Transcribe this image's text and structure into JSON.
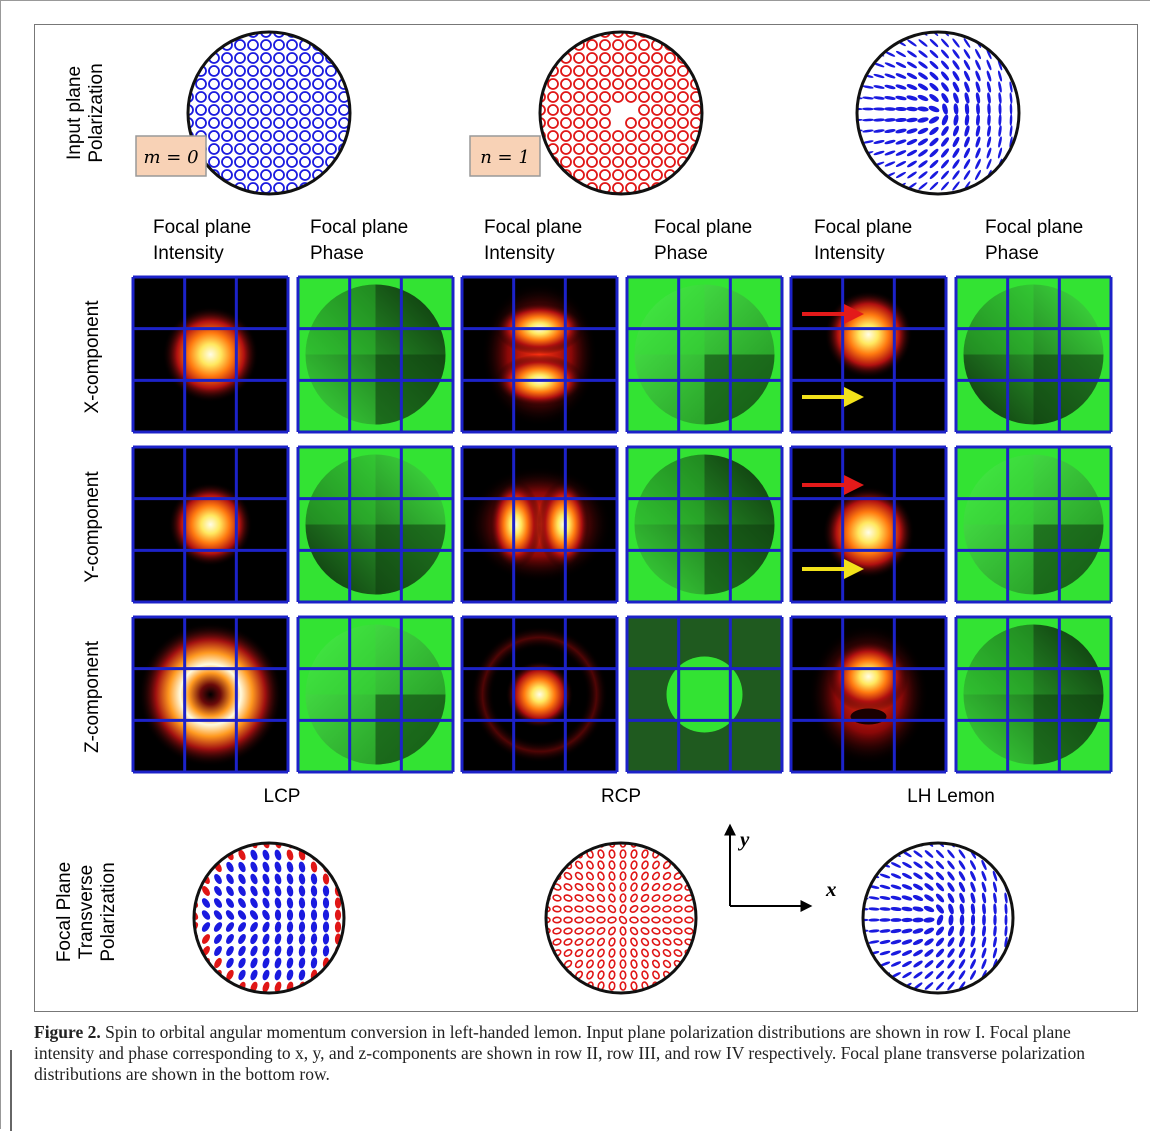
{
  "figure": {
    "row_labels": {
      "input": [
        "Input plane",
        "Polarization"
      ],
      "x": "X-component",
      "y": "Y-component",
      "z": "Z-component",
      "focal": [
        "Focal Plane",
        "Transverse",
        "Polarization"
      ]
    },
    "charge_labels": {
      "m": "m = 0",
      "n": "n = 1"
    },
    "column_headers": [
      [
        "Focal plane",
        "Intensity"
      ],
      [
        "Focal plane",
        "Phase"
      ],
      [
        "Focal plane",
        "Intensity"
      ],
      [
        "Focal plane",
        "Phase"
      ],
      [
        "Focal plane",
        "Intensity"
      ],
      [
        "Focal plane",
        "Phase"
      ]
    ],
    "group_labels": [
      "LCP",
      "RCP",
      "LH Lemon"
    ],
    "axis_labels": {
      "x": "x",
      "y": "y"
    },
    "colors": {
      "grid": "#1c22c8",
      "left_ellipse": "#1a1adf",
      "right_ellipse": "#e01616",
      "phase_bright": "#33e333",
      "phase_dark": "#0f3a0f",
      "arrow_red": "#e31a1a",
      "arrow_yellow": "#f2e21a"
    }
  },
  "caption": {
    "label": "Figure 2.",
    "text": " Spin to orbital angular momentum conversion in left-handed lemon. Input plane polarization distributions are shown in row I. Focal plane intensity and phase corresponding to x, y, and z-components are shown in row II, row III, and row IV respectively. Focal plane transverse polarization distributions are shown in the bottom row."
  }
}
